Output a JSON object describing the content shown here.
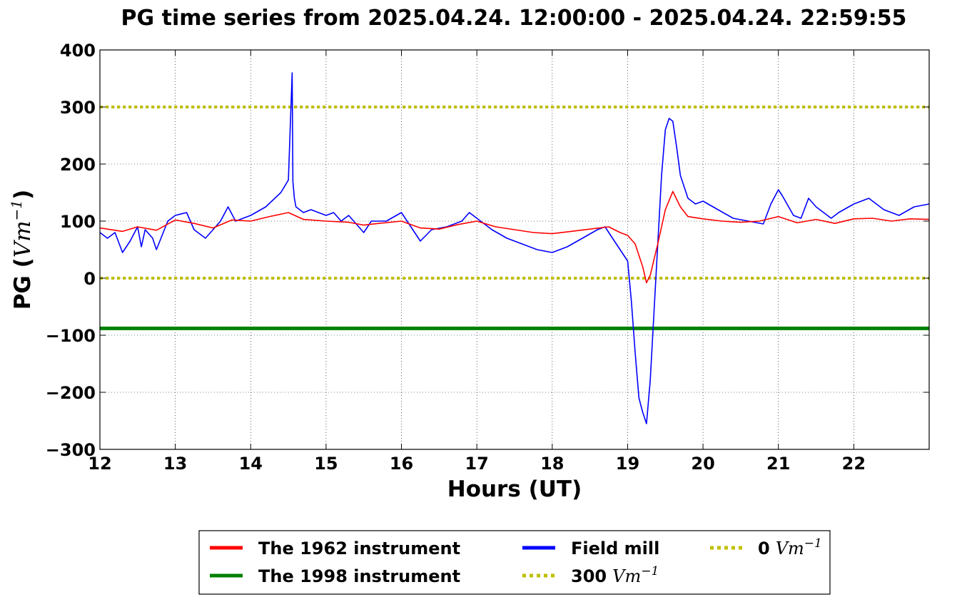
{
  "chart_data": {
    "type": "line",
    "title": "PG time series from 2025.04.24. 12:00:00 - 2025.04.24. 22:59:55",
    "xlabel": "Hours (UT)",
    "ylabel": {
      "prefix": "PG (",
      "unit": "Vm",
      "exp": "−1",
      "suffix": ")"
    },
    "xlim": [
      12,
      23
    ],
    "ylim": [
      -300,
      400
    ],
    "x_ticks": [
      12,
      13,
      14,
      15,
      16,
      17,
      18,
      19,
      20,
      21,
      22
    ],
    "y_ticks": [
      400,
      300,
      200,
      100,
      0,
      -100,
      -200,
      -300
    ],
    "y_tick_labels": [
      "400",
      "300",
      "200",
      "100",
      "0",
      "−100",
      "−200",
      "−300"
    ],
    "grid": true,
    "legend_position": "below",
    "series": [
      {
        "name": "The 1962 instrument",
        "color": "#ff0000",
        "x": [
          12.0,
          12.3,
          12.5,
          12.75,
          13.0,
          13.25,
          13.5,
          13.75,
          14.0,
          14.25,
          14.5,
          14.7,
          15.0,
          15.3,
          15.5,
          15.7,
          16.0,
          16.25,
          16.5,
          16.75,
          17.0,
          17.25,
          17.5,
          17.75,
          18.0,
          18.25,
          18.5,
          18.75,
          18.9,
          19.0,
          19.1,
          19.2,
          19.25,
          19.3,
          19.4,
          19.5,
          19.6,
          19.7,
          19.8,
          20.0,
          20.25,
          20.5,
          20.75,
          21.0,
          21.25,
          21.5,
          21.75,
          22.0,
          22.25,
          22.5,
          22.75,
          23.0
        ],
        "y": [
          88,
          82,
          90,
          84,
          102,
          96,
          88,
          102,
          100,
          108,
          115,
          103,
          100,
          98,
          93,
          96,
          100,
          88,
          86,
          94,
          100,
          90,
          85,
          80,
          78,
          82,
          86,
          90,
          80,
          75,
          60,
          20,
          -8,
          5,
          60,
          120,
          152,
          125,
          108,
          104,
          100,
          98,
          100,
          108,
          97,
          103,
          96,
          104,
          105,
          100,
          104,
          103
        ]
      },
      {
        "name": "The 1998 instrument",
        "color": "#008000",
        "x": [
          12.0,
          23.0
        ],
        "y": [
          -88,
          -88
        ]
      },
      {
        "name": "Field mill",
        "color": "#0000ff",
        "x": [
          12.0,
          12.1,
          12.2,
          12.3,
          12.4,
          12.5,
          12.55,
          12.6,
          12.7,
          12.75,
          12.9,
          13.0,
          13.15,
          13.25,
          13.4,
          13.5,
          13.6,
          13.7,
          13.8,
          14.0,
          14.2,
          14.4,
          14.5,
          14.55,
          14.56,
          14.58,
          14.6,
          14.7,
          14.8,
          15.0,
          15.1,
          15.2,
          15.3,
          15.4,
          15.5,
          15.6,
          15.8,
          16.0,
          16.1,
          16.25,
          16.4,
          16.6,
          16.8,
          16.9,
          17.0,
          17.2,
          17.4,
          17.6,
          17.8,
          18.0,
          18.2,
          18.4,
          18.6,
          18.7,
          18.8,
          18.9,
          19.0,
          19.05,
          19.1,
          19.15,
          19.2,
          19.25,
          19.3,
          19.35,
          19.4,
          19.45,
          19.5,
          19.55,
          19.6,
          19.65,
          19.7,
          19.8,
          19.9,
          20.0,
          20.2,
          20.4,
          20.6,
          20.8,
          20.9,
          21.0,
          21.05,
          21.2,
          21.3,
          21.4,
          21.5,
          21.7,
          21.8,
          22.0,
          22.2,
          22.4,
          22.6,
          22.8,
          23.0
        ],
        "y": [
          80,
          70,
          80,
          45,
          65,
          90,
          55,
          85,
          70,
          50,
          100,
          110,
          115,
          85,
          70,
          85,
          100,
          125,
          100,
          110,
          125,
          150,
          172,
          360,
          170,
          140,
          125,
          115,
          120,
          110,
          115,
          100,
          110,
          95,
          80,
          100,
          100,
          115,
          95,
          65,
          85,
          90,
          100,
          115,
          105,
          85,
          70,
          60,
          50,
          45,
          55,
          70,
          85,
          90,
          70,
          50,
          30,
          -40,
          -130,
          -210,
          -235,
          -255,
          -180,
          -60,
          60,
          180,
          260,
          280,
          275,
          230,
          180,
          140,
          130,
          135,
          120,
          105,
          100,
          95,
          130,
          155,
          145,
          110,
          105,
          140,
          125,
          105,
          115,
          130,
          140,
          120,
          110,
          125,
          130
        ]
      },
      {
        "name": "300 Vm−1",
        "color": "#bfbf00",
        "style": "dotted",
        "x": [
          12.0,
          23.0
        ],
        "y": [
          300,
          300
        ]
      },
      {
        "name": "0 Vm−1",
        "color": "#bfbf00",
        "style": "dotted",
        "x": [
          12.0,
          23.0
        ],
        "y": [
          0,
          0
        ]
      }
    ],
    "legend": [
      {
        "number": "1962",
        "label_pre": "The ",
        "label_post": " instrument",
        "color": "#ff0000",
        "style": "solid"
      },
      {
        "number": "1998",
        "label_pre": "The ",
        "label_post": " instrument",
        "color": "#008000",
        "style": "solid"
      },
      {
        "label_pre": "Field mill",
        "color": "#0000ff",
        "style": "solid"
      },
      {
        "value": "300",
        "unit": "Vm",
        "exp": "−1",
        "color": "#bfbf00",
        "style": "dotted"
      },
      {
        "value": "0",
        "unit": "Vm",
        "exp": "−1",
        "color": "#bfbf00",
        "style": "dotted"
      }
    ]
  }
}
